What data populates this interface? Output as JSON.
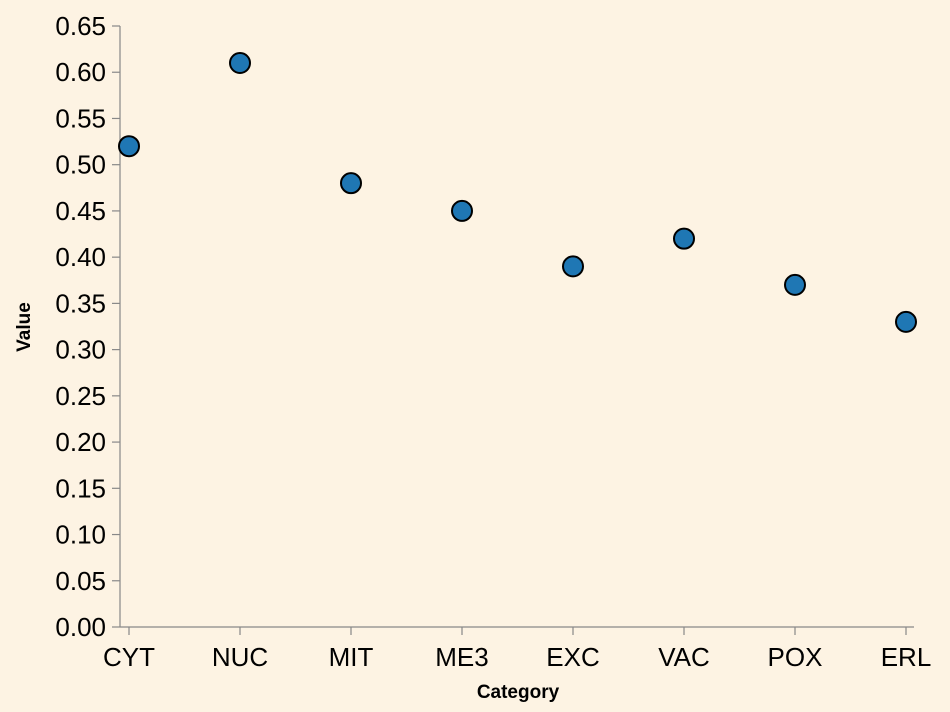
{
  "chart_data": {
    "type": "scatter",
    "title": "",
    "xlabel": "Category",
    "ylabel": "Value",
    "categories": [
      "CYT",
      "NUC",
      "MIT",
      "ME3",
      "EXC",
      "VAC",
      "POX",
      "ERL"
    ],
    "values": [
      0.52,
      0.61,
      0.48,
      0.45,
      0.39,
      0.42,
      0.37,
      0.33
    ],
    "ylim": [
      0,
      0.65
    ],
    "yticks": [
      "0.00",
      "0.05",
      "0.10",
      "0.15",
      "0.20",
      "0.25",
      "0.30",
      "0.35",
      "0.40",
      "0.45",
      "0.50",
      "0.55",
      "0.60",
      "0.65"
    ],
    "grid": false,
    "legend": "none",
    "colors": {
      "point_fill": "#1f77b4",
      "point_stroke": "#000000",
      "background": "#fdf3e3"
    }
  }
}
